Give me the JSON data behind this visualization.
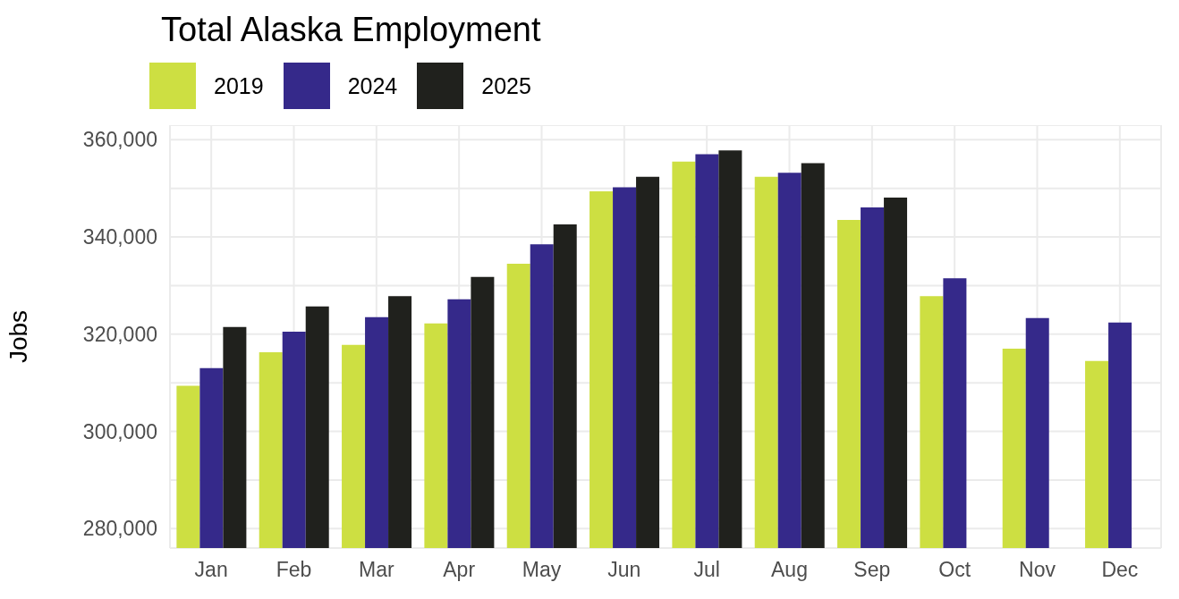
{
  "chart_data": {
    "type": "bar",
    "title": "Total Alaska Employment",
    "ylabel": "Jobs",
    "categories": [
      "Jan",
      "Feb",
      "Mar",
      "Apr",
      "May",
      "Jun",
      "Jul",
      "Aug",
      "Sep",
      "Oct",
      "Nov",
      "Dec"
    ],
    "series": [
      {
        "name": "2019",
        "color": "#cddf42",
        "values": [
          309400,
          316300,
          317800,
          322200,
          334500,
          349400,
          355500,
          352400,
          343500,
          327800,
          317000,
          314500
        ]
      },
      {
        "name": "2024",
        "color": "#35298a",
        "values": [
          313000,
          320500,
          323500,
          327200,
          338500,
          350200,
          357000,
          353200,
          346100,
          331500,
          323300,
          322400
        ]
      },
      {
        "name": "2025",
        "color": "#20211d",
        "values": [
          321500,
          325700,
          327800,
          331800,
          342600,
          352400,
          357800,
          355200,
          348100,
          null,
          null,
          null
        ]
      }
    ],
    "ylim": [
      276000,
      363000
    ],
    "yticks": [
      {
        "value": 280000,
        "label": "280,000"
      },
      {
        "value": 290000,
        "label": null
      },
      {
        "value": 300000,
        "label": "300,000"
      },
      {
        "value": 310000,
        "label": null
      },
      {
        "value": 320000,
        "label": "320,000"
      },
      {
        "value": 330000,
        "label": null
      },
      {
        "value": 340000,
        "label": "340,000"
      },
      {
        "value": 350000,
        "label": null
      },
      {
        "value": 360000,
        "label": "360,000"
      }
    ],
    "grid": true,
    "legend": "top left"
  }
}
